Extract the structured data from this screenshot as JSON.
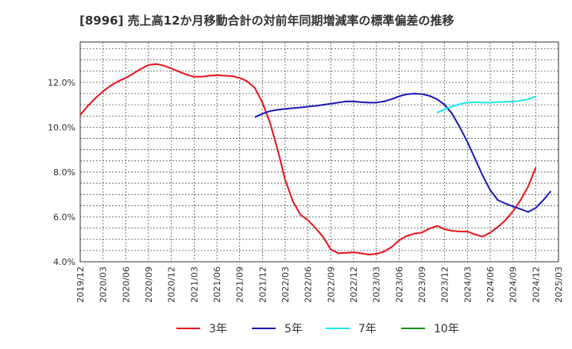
{
  "chart_data": {
    "type": "line",
    "title": "[8996]  売上高12か月移動合計の対前年同期増減率の標準偏差の推移",
    "xlabel": "",
    "ylabel": "",
    "ylim": [
      4.0,
      13.8
    ],
    "grid": true,
    "legend_position": "bottom",
    "y_ticks": [
      4.0,
      6.0,
      8.0,
      10.0,
      12.0
    ],
    "y_tick_labels": [
      "4.0%",
      "6.0%",
      "8.0%",
      "10.0%",
      "12.0%"
    ],
    "x_ticks": [
      "2019/12",
      "2020/03",
      "2020/06",
      "2020/09",
      "2020/12",
      "2021/03",
      "2021/06",
      "2021/09",
      "2021/12",
      "2022/03",
      "2022/06",
      "2022/09",
      "2022/12",
      "2023/03",
      "2023/06",
      "2023/09",
      "2023/12",
      "2024/03",
      "2024/06",
      "2024/09",
      "2024/12",
      "2025/03"
    ],
    "series": [
      {
        "name": "3年",
        "color": "#e8141c",
        "start": "2019/12",
        "values": [
          10.55,
          10.95,
          11.3,
          11.6,
          11.85,
          12.05,
          12.2,
          12.4,
          12.6,
          12.78,
          12.82,
          12.75,
          12.62,
          12.48,
          12.35,
          12.25,
          12.25,
          12.3,
          12.32,
          12.3,
          12.28,
          12.2,
          12.05,
          11.75,
          11.1,
          10.2,
          9.0,
          7.65,
          6.7,
          6.1,
          5.85,
          5.5,
          5.1,
          4.55,
          4.38,
          4.4,
          4.42,
          4.38,
          4.32,
          4.35,
          4.45,
          4.65,
          4.95,
          5.15,
          5.25,
          5.3,
          5.48,
          5.6,
          5.45,
          5.38,
          5.35,
          5.35,
          5.22,
          5.12,
          5.3,
          5.55,
          5.85,
          6.25,
          6.75,
          7.35,
          8.2
        ]
      },
      {
        "name": "5年",
        "color": "#1a1ab4",
        "start": "2021/11",
        "values": [
          10.45,
          10.6,
          10.72,
          10.78,
          10.82,
          10.85,
          10.88,
          10.92,
          10.95,
          11.0,
          11.05,
          11.1,
          11.15,
          11.15,
          11.12,
          11.1,
          11.1,
          11.15,
          11.25,
          11.38,
          11.47,
          11.5,
          11.48,
          11.4,
          11.25,
          11.0,
          10.6,
          10.0,
          9.35,
          8.6,
          7.85,
          7.2,
          6.75,
          6.6,
          6.47,
          6.35,
          6.22,
          6.4,
          6.75,
          7.15
        ]
      },
      {
        "name": "7年",
        "color": "#19e8ee",
        "start": "2023/11",
        "values": [
          10.65,
          10.8,
          10.93,
          11.03,
          11.1,
          11.12,
          11.1,
          11.1,
          11.12,
          11.13,
          11.15,
          11.18,
          11.25,
          11.38
        ]
      },
      {
        "name": "10年",
        "color": "#1a8c1a",
        "start": "",
        "values": []
      }
    ]
  }
}
